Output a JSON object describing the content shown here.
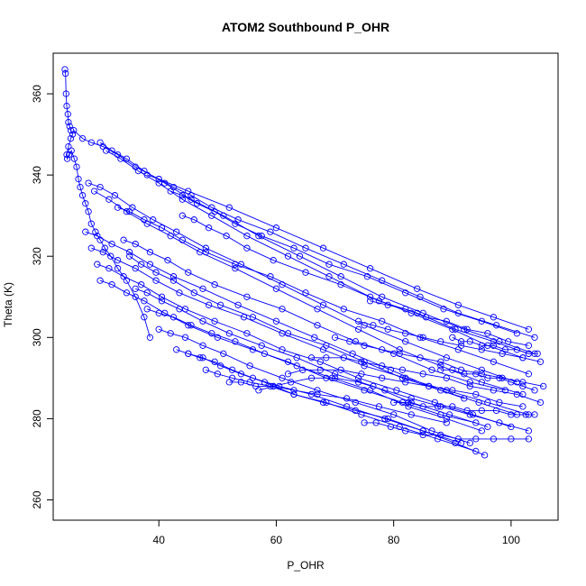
{
  "chart_data": {
    "type": "scatter",
    "title": "ATOM2 Southbound P_OHR",
    "xlabel": "P_OHR",
    "ylabel": "Theta (K)",
    "xlim": [
      22,
      108
    ],
    "ylim": [
      255,
      370
    ],
    "xticks": [
      40,
      60,
      80,
      100
    ],
    "yticks": [
      260,
      280,
      300,
      320,
      340,
      360
    ],
    "grid": false,
    "legend": "none",
    "color": "#0000ff",
    "series": [
      {
        "x": [
          24.0,
          24.1,
          24.2,
          24.3,
          24.5,
          24.6,
          24.8,
          25.0,
          25.3,
          25.0,
          24.6,
          24.3,
          24.4,
          24.7,
          25.1,
          25.6,
          26.0,
          26.3,
          26.6,
          27.0,
          27.5,
          28.0,
          28.5,
          29.2,
          30.0,
          30.8,
          31.8,
          33.0,
          34.5,
          36.0,
          37.5,
          38.5
        ],
        "y": [
          366,
          365,
          360,
          357,
          355,
          353,
          352,
          351,
          350,
          349,
          347,
          345,
          344,
          345,
          346,
          344,
          342,
          339,
          337,
          335,
          333,
          331,
          328,
          326,
          324,
          322,
          320,
          317,
          314,
          310,
          305,
          300
        ]
      },
      {
        "x": [
          25.5,
          27.0,
          28.5,
          30.5,
          33.0,
          36.0,
          40.0,
          45.0,
          52.0,
          60.0,
          68.0,
          76.0,
          84.0,
          91.0,
          97.0,
          103.0
        ],
        "y": [
          351,
          349,
          348,
          347,
          345,
          342,
          339,
          336,
          332,
          327,
          322,
          317,
          312,
          308,
          305,
          302
        ]
      },
      {
        "x": [
          30.0,
          32.0,
          34.5,
          37.5,
          41.0,
          45.5,
          51.0,
          57.0,
          64.0,
          71.0,
          78.0,
          85.0,
          92.0,
          98.0,
          104.0
        ],
        "y": [
          348,
          346,
          344,
          341,
          338,
          334,
          330,
          325,
          320,
          315,
          310,
          306,
          302,
          299,
          296
        ]
      },
      {
        "x": [
          31.0,
          33.5,
          36.5,
          40.0,
          44.0,
          49.0,
          55.0,
          62.0,
          69.0,
          76.0,
          83.0,
          90.0,
          96.0,
          102.0
        ],
        "y": [
          346,
          344,
          341,
          338,
          334,
          330,
          325,
          320,
          315,
          310,
          306,
          302,
          298,
          295
        ]
      },
      {
        "x": [
          28.0,
          30.0,
          32.5,
          35.5,
          39.0,
          43.0,
          48.0,
          54.0,
          61.0,
          68.0,
          75.0,
          82.0,
          89.0,
          95.0,
          101.0
        ],
        "y": [
          338,
          337,
          335,
          332,
          329,
          326,
          322,
          318,
          313,
          308,
          303,
          299,
          295,
          292,
          289
        ]
      },
      {
        "x": [
          29.0,
          31.5,
          34.5,
          38.0,
          42.0,
          47.0,
          53.0,
          60.0,
          67.0,
          74.0,
          81.0,
          88.0,
          95.0,
          102.0
        ],
        "y": [
          336,
          334,
          331,
          328,
          325,
          321,
          317,
          312,
          307,
          302,
          297,
          293,
          289,
          286
        ]
      },
      {
        "x": [
          27.5,
          29.5,
          32.0,
          35.0,
          38.5,
          42.5,
          47.5,
          53.5,
          60.0,
          66.5,
          73.0,
          79.5,
          86.0,
          92.0
        ],
        "y": [
          326,
          325,
          323,
          321,
          318,
          315,
          312,
          308,
          304,
          300,
          296,
          292,
          288,
          285
        ]
      },
      {
        "x": [
          28.5,
          30.5,
          33.0,
          36.0,
          39.5,
          43.5,
          48.5,
          54.5,
          61.0,
          68.0,
          75.0,
          82.0,
          89.0,
          96.0,
          103.0
        ],
        "y": [
          322,
          321,
          319,
          317,
          314,
          311,
          308,
          305,
          301,
          297,
          293,
          290,
          287,
          284,
          281
        ]
      },
      {
        "x": [
          29.5,
          31.5,
          34.0,
          37.0,
          40.5,
          44.5,
          49.5,
          55.0,
          61.0,
          67.5,
          74.0,
          80.5,
          87.0,
          93.5,
          100.0
        ],
        "y": [
          318,
          317,
          315,
          313,
          310,
          307,
          304,
          301,
          297,
          294,
          290,
          287,
          284,
          281,
          278
        ]
      },
      {
        "x": [
          30.0,
          32.0,
          34.5,
          37.5,
          41.0,
          45.0,
          50.0,
          56.0,
          62.0,
          68.5,
          75.0,
          81.5,
          88.0,
          94.0
        ],
        "y": [
          314,
          313,
          311,
          309,
          306,
          303,
          300,
          297,
          294,
          290,
          287,
          284,
          281,
          279
        ]
      },
      {
        "x": [
          33.0,
          35.0,
          37.5,
          40.5,
          44.0,
          48.0,
          53.0,
          59.0,
          65.0,
          71.5,
          78.0,
          84.5,
          91.0,
          97.0,
          103.0
        ],
        "y": [
          332,
          331,
          329,
          327,
          324,
          321,
          318,
          315,
          311,
          307,
          304,
          300,
          297,
          294,
          291
        ]
      },
      {
        "x": [
          34.0,
          36.0,
          38.5,
          41.5,
          45.0,
          49.5,
          55.0,
          61.0,
          67.0,
          73.5,
          80.0,
          86.5,
          93.0,
          99.0
        ],
        "y": [
          324,
          323,
          321,
          319,
          316,
          313,
          310,
          307,
          303,
          299,
          296,
          292,
          289,
          287
        ]
      },
      {
        "x": [
          35.0,
          37.0,
          39.5,
          42.5,
          46.0,
          50.5,
          56.0,
          62.0,
          68.5,
          75.0,
          81.5,
          88.0,
          94.5,
          101.0
        ],
        "y": [
          320,
          318,
          316,
          314,
          311,
          308,
          305,
          301,
          298,
          294,
          290,
          287,
          284,
          281
        ]
      },
      {
        "x": [
          36.0,
          38.0,
          40.5,
          43.5,
          47.5,
          52.0,
          57.5,
          63.5,
          70.0,
          76.5,
          83.0,
          89.5,
          96.0
        ],
        "y": [
          312,
          311,
          309,
          307,
          304,
          301,
          298,
          295,
          291,
          288,
          284,
          281,
          278
        ]
      },
      {
        "x": [
          38.0,
          40.0,
          42.5,
          45.5,
          49.0,
          53.0,
          58.0,
          63.5,
          69.5,
          76.0,
          82.5,
          89.0,
          95.0
        ],
        "y": [
          307,
          306,
          305,
          303,
          301,
          299,
          296,
          293,
          290,
          287,
          283,
          280,
          277
        ]
      },
      {
        "x": [
          40.0,
          42.0,
          44.5,
          47.5,
          51.0,
          55.5,
          61.0,
          67.0,
          73.5,
          80.0,
          86.5,
          93.0
        ],
        "y": [
          302,
          301,
          300,
          298,
          296,
          293,
          290,
          287,
          284,
          281,
          277,
          274
        ]
      },
      {
        "x": [
          43.0,
          45.0,
          47.5,
          50.5,
          54.0,
          58.0,
          63.0,
          68.5,
          74.5,
          81.0,
          87.5,
          94.0
        ],
        "y": [
          297,
          296,
          295,
          293,
          291,
          289,
          286,
          284,
          281,
          278,
          275,
          272
        ]
      },
      {
        "x": [
          45.0,
          47.0,
          49.5,
          52.5,
          56.0,
          60.5,
          66.0,
          72.0,
          78.5,
          85.0,
          91.5
        ],
        "y": [
          296,
          295,
          294,
          292,
          290,
          288,
          286,
          283,
          280,
          277,
          274
        ]
      },
      {
        "x": [
          48.0,
          50.0,
          52.5,
          55.5,
          59.0,
          63.0,
          68.0,
          73.5,
          79.0,
          85.0,
          90.5,
          95.5
        ],
        "y": [
          292,
          291,
          290,
          289,
          288,
          286,
          284,
          282,
          280,
          277,
          274,
          271
        ]
      },
      {
        "x": [
          52.0,
          54.0,
          56.5,
          59.5,
          63.0,
          67.0,
          72.0,
          77.5,
          83.0,
          89.0
        ],
        "y": [
          289,
          289,
          288,
          288,
          287,
          286,
          285,
          283,
          281,
          279
        ]
      },
      {
        "x": [
          57.0,
          59.5,
          62.5,
          66.0,
          70.0,
          74.0,
          78.5,
          83.0,
          88.0,
          93.0,
          98.0,
          103.0
        ],
        "y": [
          287,
          288,
          289,
          290,
          290,
          289,
          287,
          285,
          283,
          281,
          279,
          277
        ]
      },
      {
        "x": [
          62.0,
          64.5,
          67.5,
          71.0,
          74.5,
          78.0,
          82.0,
          86.0,
          90.0,
          94.0,
          98.0,
          102.0
        ],
        "y": [
          291,
          292,
          292,
          292,
          291,
          290,
          289,
          288,
          287,
          286,
          284,
          283
        ]
      },
      {
        "x": [
          66.0,
          68.5,
          71.5,
          74.5,
          78.0,
          81.5,
          85.0,
          89.0,
          93.0,
          97.0,
          101.0,
          105.0
        ],
        "y": [
          295,
          295,
          295,
          294,
          293,
          292,
          291,
          290,
          288,
          287,
          286,
          284
        ]
      },
      {
        "x": [
          70.0,
          72.5,
          75.0,
          78.0,
          81.0,
          84.5,
          88.0,
          91.5,
          95.0,
          98.5,
          102.0,
          105.5
        ],
        "y": [
          300,
          299,
          298,
          297,
          296,
          295,
          294,
          292,
          291,
          290,
          289,
          288
        ]
      },
      {
        "x": [
          74.0,
          76.5,
          79.0,
          82.0,
          85.0,
          88.0,
          91.5,
          95.0,
          98.5,
          102.0,
          105.0
        ],
        "y": [
          304,
          303,
          302,
          301,
          300,
          299,
          298,
          297,
          296,
          295,
          294
        ]
      },
      {
        "x": [
          76.0,
          79.0,
          82.0,
          85.5,
          89.0,
          92.5,
          96.0,
          99.5,
          103.0
        ],
        "y": [
          309,
          308,
          307,
          305,
          304,
          302,
          301,
          299,
          298
        ]
      },
      {
        "x": [
          75.0,
          77.0,
          79.5,
          82.0,
          85.0,
          88.0,
          91.0,
          94.0,
          97.0,
          100.0,
          103.0
        ],
        "y": [
          279,
          279,
          278,
          277,
          276,
          276,
          275,
          275,
          275,
          275,
          275
        ]
      },
      {
        "x": [
          80.0,
          82.5,
          85.0,
          87.5,
          90.0,
          92.5,
          95.0,
          97.5,
          100.0,
          102.5,
          104.0
        ],
        "y": [
          284,
          284,
          283,
          283,
          283,
          282,
          282,
          282,
          281,
          281,
          281
        ]
      },
      {
        "x": [
          88.0,
          90.0,
          92.0,
          94.0,
          96.0,
          98.0,
          100.0,
          102.0,
          104.0
        ],
        "y": [
          292,
          292,
          291,
          291,
          290,
          290,
          289,
          288,
          287
        ]
      },
      {
        "x": [
          90.0,
          91.5,
          93.0,
          95.0,
          97.0,
          99.0,
          101.0,
          103.0,
          104.5
        ],
        "y": [
          300,
          299,
          299,
          298,
          298,
          297,
          297,
          296,
          296
        ]
      },
      {
        "x": [
          38.0,
          40.0,
          42.5,
          45.5,
          49.0,
          53.5,
          59.0,
          65.0,
          71.5,
          78.0,
          84.5,
          91.0,
          97.5,
          104.0
        ],
        "y": [
          340,
          339,
          337,
          335,
          332,
          329,
          326,
          322,
          318,
          314,
          310,
          306,
          303,
          300
        ]
      },
      {
        "x": [
          42.0,
          44.0,
          46.5,
          49.5,
          53.0,
          57.5,
          63.0,
          69.0,
          75.5,
          82.0,
          88.5,
          95.0,
          101.0
        ],
        "y": [
          336,
          335,
          333,
          331,
          328,
          325,
          322,
          318,
          315,
          311,
          307,
          304,
          301
        ]
      },
      {
        "x": [
          44.0,
          46.0,
          48.5,
          51.5,
          55.0,
          59.5,
          65.0,
          71.0,
          77.5,
          84.0,
          90.5,
          97.0,
          103.0
        ],
        "y": [
          330,
          329,
          327,
          325,
          322,
          319,
          316,
          313,
          309,
          306,
          302,
          299,
          296
        ]
      }
    ]
  }
}
